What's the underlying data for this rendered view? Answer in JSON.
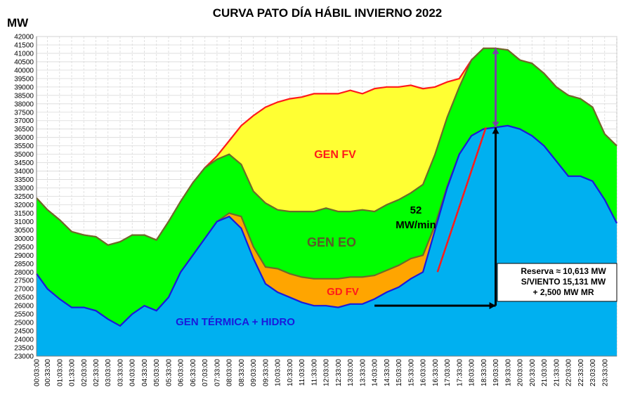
{
  "chart_data": {
    "type": "area",
    "title": "CURVA  PATO DÍA HÁBIL INVIERNO  2022",
    "ylabel": "MW",
    "ylim": [
      23000,
      42000
    ],
    "yticks": [
      23000,
      23500,
      24000,
      24500,
      25000,
      25500,
      26000,
      26500,
      27000,
      27500,
      28000,
      28500,
      29000,
      29500,
      30000,
      30500,
      31000,
      31500,
      32000,
      32500,
      33000,
      33500,
      34000,
      34500,
      35000,
      35500,
      36000,
      36500,
      37000,
      37500,
      38000,
      38500,
      39000,
      39500,
      40000,
      40500,
      41000,
      41500,
      42000
    ],
    "x_ticks": [
      "00:03:00",
      "00:33:00",
      "01:03:00",
      "01:33:00",
      "02:03:00",
      "02:33:00",
      "03:03:00",
      "03:33:00",
      "04:03:00",
      "04:33:00",
      "05:03:00",
      "05:33:00",
      "06:03:00",
      "06:33:00",
      "07:03:00",
      "07:33:00",
      "08:03:00",
      "08:33:00",
      "09:03:00",
      "09:33:00",
      "10:03:00",
      "10:33:00",
      "11:03:00",
      "11:33:00",
      "12:03:00",
      "12:33:00",
      "13:03:00",
      "13:33:00",
      "14:03:00",
      "14:33:00",
      "15:03:00",
      "15:33:00",
      "16:03:00",
      "16:33:00",
      "17:03:00",
      "17:33:00",
      "18:03:00",
      "18:33:00",
      "19:03:00",
      "19:33:00",
      "20:03:00",
      "20:33:00",
      "21:03:00",
      "21:33:00",
      "22:03:00",
      "22:33:00",
      "23:03:00",
      "23:33:00"
    ],
    "x_hours": [
      0.05,
      0.5,
      1,
      1.5,
      2,
      2.5,
      3,
      3.5,
      4,
      4.5,
      5,
      5.5,
      6,
      6.5,
      7,
      7.5,
      8,
      8.5,
      9,
      9.5,
      10,
      10.5,
      11,
      11.5,
      12,
      12.5,
      13,
      13.5,
      14,
      14.5,
      15,
      15.5,
      16,
      16.5,
      17,
      17.5,
      18,
      18.5,
      19,
      19.5,
      20,
      20.5,
      21,
      21.5,
      22,
      22.5,
      23,
      23.5,
      24
    ],
    "series": [
      {
        "name": "GEN TÉRMICA + HIDRO",
        "color": "#00b0f0",
        "line": "#1a1adc",
        "values": [
          27900,
          27000,
          26400,
          25900,
          25900,
          25700,
          25200,
          24800,
          25500,
          26000,
          25700,
          26500,
          28000,
          29000,
          30000,
          31000,
          31300,
          30600,
          28800,
          27300,
          26800,
          26500,
          26200,
          26000,
          26000,
          25900,
          26100,
          26100,
          26400,
          26800,
          27100,
          27600,
          28000,
          30500,
          33000,
          35000,
          36100,
          36500,
          36600,
          36700,
          36500,
          36100,
          35500,
          34600,
          33700,
          33700,
          33400,
          32300,
          30900
        ]
      },
      {
        "name": "GD FV",
        "color": "#ffa500",
        "line": "#6b6b2a",
        "values": [
          27900,
          27000,
          26400,
          25900,
          25900,
          25700,
          25200,
          24800,
          25500,
          26000,
          25700,
          26500,
          28000,
          29000,
          30000,
          31000,
          31500,
          31300,
          29500,
          28300,
          28200,
          27900,
          27700,
          27600,
          27600,
          27600,
          27700,
          27700,
          27800,
          28100,
          28400,
          28800,
          29000,
          30800,
          33100,
          35000,
          36100,
          36500,
          36600,
          36700,
          36500,
          36100,
          35500,
          34600,
          33700,
          33700,
          33400,
          32300,
          30900
        ]
      },
      {
        "name": "GEN EO",
        "color": "#00ff00",
        "line": "#6b6b2a",
        "values": [
          32400,
          31700,
          31100,
          30400,
          30200,
          30100,
          29600,
          29800,
          30200,
          30200,
          29900,
          31000,
          32200,
          33300,
          34200,
          34700,
          35000,
          34400,
          32800,
          32100,
          31700,
          31600,
          31600,
          31600,
          31800,
          31600,
          31600,
          31700,
          31600,
          32000,
          32300,
          32700,
          33200,
          35000,
          37200,
          39000,
          40600,
          41300,
          41300,
          41200,
          40600,
          40400,
          39800,
          39000,
          38500,
          38300,
          37800,
          36200,
          35500
        ]
      },
      {
        "name": "GEN FV",
        "color": "#ffff33",
        "line": "#ff1a1a",
        "values": [
          32400,
          31700,
          31100,
          30400,
          30200,
          30100,
          29600,
          29800,
          30200,
          30200,
          29900,
          31000,
          32200,
          33300,
          34200,
          34900,
          35800,
          36700,
          37300,
          37800,
          38100,
          38300,
          38400,
          38600,
          38600,
          38600,
          38800,
          38600,
          38900,
          39000,
          39000,
          39100,
          38900,
          39000,
          39300,
          39500,
          40600,
          41300,
          41300,
          41200,
          40600,
          40400,
          39800,
          39000,
          38500,
          38300,
          37800,
          36200,
          35500
        ]
      }
    ],
    "annotations": {
      "area_labels": [
        "GEN FV",
        "GEN EO",
        "GD FV",
        "GEN TÉRMICA + HIDRO"
      ],
      "ramp": {
        "text1": "52",
        "text2": "MW/min",
        "from": [
          16.6,
          28000
        ],
        "to": [
          18.6,
          36600
        ]
      },
      "reserve": {
        "lines": [
          "Reserva ≈ 10,613 MW",
          "S/VIENTO 15,131 MW",
          "+ 2,500 MW MR"
        ],
        "hour": 19.0,
        "y_low": 26000,
        "y_high": 41300,
        "arrow_y": 36600,
        "h_from": 14.0
      }
    },
    "grid": true
  }
}
